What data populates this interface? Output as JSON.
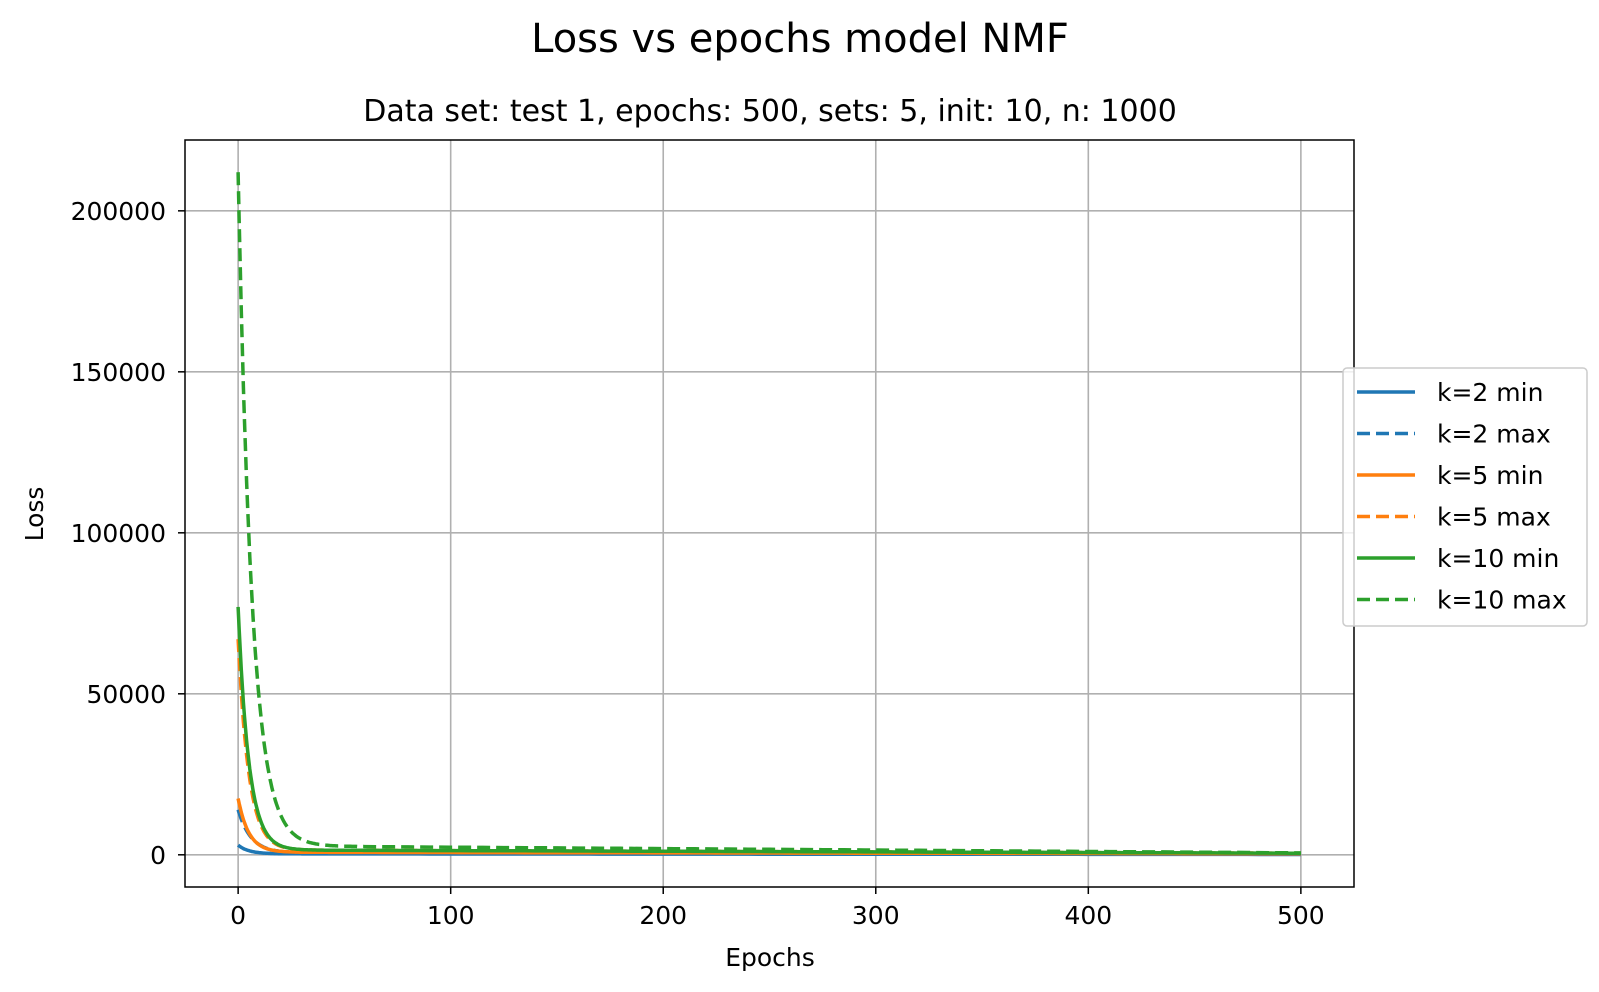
{
  "chart_data": {
    "type": "line",
    "suptitle": "Loss vs epochs model NMF",
    "title": "Data set: test 1, epochs: 500, sets: 5, init: 10, n: 1000",
    "xlabel": "Epochs",
    "ylabel": "Loss",
    "xlim": [
      -25,
      525
    ],
    "ylim": [
      -10000,
      222000
    ],
    "xticks": [
      0,
      100,
      200,
      300,
      400,
      500
    ],
    "yticks": [
      0,
      50000,
      100000,
      150000,
      200000
    ],
    "xtick_labels": [
      "0",
      "100",
      "200",
      "300",
      "400",
      "500"
    ],
    "ytick_labels": [
      "0",
      "50000",
      "100000",
      "150000",
      "200000"
    ],
    "grid": true,
    "legend_position": "right, outside plot area",
    "series": [
      {
        "name": "k=2 min",
        "color": "#1f77b4",
        "style": "solid",
        "start": 3000,
        "tau": 5,
        "floor": 300,
        "tail": 100
      },
      {
        "name": "k=2 max",
        "color": "#1f77b4",
        "style": "dashed",
        "start": 14000,
        "tau": 6,
        "floor": 600,
        "tail": 250
      },
      {
        "name": "k=5 min",
        "color": "#ff7f0e",
        "style": "solid",
        "start": 17500,
        "tau": 5,
        "floor": 800,
        "tail": 300
      },
      {
        "name": "k=5 max",
        "color": "#ff7f0e",
        "style": "dashed",
        "start": 67000,
        "tau": 5,
        "floor": 1500,
        "tail": 500
      },
      {
        "name": "k=10 min",
        "color": "#2ca02c",
        "style": "solid",
        "start": 77000,
        "tau": 5,
        "floor": 1500,
        "tail": 500
      },
      {
        "name": "k=10 max",
        "color": "#2ca02c",
        "style": "dashed",
        "start": 212000,
        "tau": 6.5,
        "floor": 2800,
        "tail": 600
      }
    ]
  }
}
